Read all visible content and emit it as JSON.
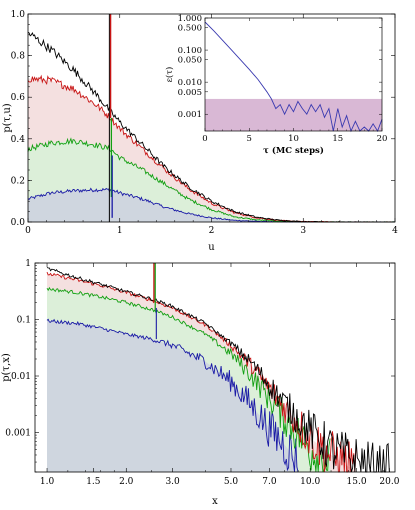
{
  "chart_data": [
    {
      "type": "area",
      "xlabel": "u",
      "ylabel": "p(τ,u)",
      "xlim": [
        0,
        4
      ],
      "ylim": [
        0,
        1.0
      ],
      "xticks": [
        "0",
        "1",
        "2",
        "3",
        "4"
      ],
      "yticks": [
        "0.0",
        "0.2",
        "0.4",
        "0.6",
        "0.8",
        "1.0"
      ],
      "grid": false,
      "spike": {
        "x": 0.9,
        "note": "vertical initial delta spike"
      },
      "series": [
        {
          "color": "#1a1aa6",
          "fill": "#cfd6df",
          "x": [
            0,
            0.25,
            0.5,
            0.75,
            0.9,
            1.0,
            1.25,
            1.5,
            1.75,
            2.0,
            2.25,
            2.5,
            2.75,
            3.0,
            3.5,
            4.0
          ],
          "values": [
            0.11,
            0.14,
            0.15,
            0.155,
            0.155,
            0.14,
            0.11,
            0.07,
            0.04,
            0.02,
            0.008,
            0.003,
            0.001,
            0,
            0,
            0
          ]
        },
        {
          "color": "#12a012",
          "fill": "#dcefd9",
          "x": [
            0,
            0.25,
            0.5,
            0.75,
            0.9,
            1.0,
            1.25,
            1.5,
            1.75,
            2.0,
            2.25,
            2.5,
            2.75,
            3.0,
            3.5,
            4.0
          ],
          "values": [
            0.35,
            0.38,
            0.39,
            0.37,
            0.35,
            0.31,
            0.25,
            0.18,
            0.11,
            0.06,
            0.025,
            0.01,
            0.004,
            0.001,
            0,
            0
          ]
        },
        {
          "color": "#c81414",
          "fill": "#f4e0e0",
          "x": [
            0,
            0.25,
            0.5,
            0.75,
            0.9,
            1.0,
            1.25,
            1.5,
            1.75,
            2.0,
            2.25,
            2.5,
            2.75,
            3.0,
            3.5,
            4.0
          ],
          "values": [
            0.69,
            0.68,
            0.64,
            0.56,
            0.5,
            0.45,
            0.35,
            0.25,
            0.16,
            0.09,
            0.045,
            0.02,
            0.007,
            0.002,
            0,
            0
          ]
        },
        {
          "color": "#000000",
          "x": [
            0,
            0.25,
            0.5,
            0.75,
            0.9,
            1.0,
            1.25,
            1.5,
            1.75,
            2.0,
            2.25,
            2.5,
            2.75,
            3.0,
            3.5,
            4.0
          ],
          "values": [
            0.91,
            0.83,
            0.73,
            0.61,
            0.53,
            0.48,
            0.37,
            0.26,
            0.17,
            0.1,
            0.05,
            0.022,
            0.008,
            0.002,
            0,
            0
          ]
        }
      ],
      "inset": {
        "type": "line",
        "xlabel": "τ (MC steps)",
        "ylabel": "ε(τ)",
        "xlim": [
          0,
          20
        ],
        "ylim": [
          0.0003,
          1.0
        ],
        "yscale": "log",
        "xticks": [
          "0",
          "5",
          "10",
          "15",
          "20"
        ],
        "yticks": [
          "1.000",
          "0.500",
          "0.100",
          "0.050",
          "0.010",
          "0.005",
          "0.001"
        ],
        "band": [
          0.0003,
          0.003
        ],
        "band_color": "#d9b8d5",
        "series": [
          {
            "color": "#3a3ab0",
            "x": [
              0,
              1,
              2,
              3,
              4,
              5,
              6,
              7,
              7.5,
              8,
              8.5,
              9,
              9.5,
              10,
              10.5,
              11,
              11.5,
              12,
              12.5,
              13,
              13.5,
              14,
              14.5,
              15,
              15.5,
              16,
              16.5,
              17,
              17.5,
              18,
              18.5,
              19,
              19.5,
              20
            ],
            "values": [
              0.75,
              0.4,
              0.2,
              0.1,
              0.05,
              0.025,
              0.012,
              0.005,
              0.003,
              0.0015,
              0.002,
              0.001,
              0.002,
              0.0012,
              0.0025,
              0.0015,
              0.001,
              0.002,
              0.0012,
              0.002,
              0.0008,
              0.0015,
              0.0003,
              0.0015,
              0.0004,
              0.0009,
              0.0003,
              0.0006,
              0.0003,
              0.0004,
              0.0003,
              0.0005,
              0.0003,
              0.0007
            ]
          }
        ]
      }
    },
    {
      "type": "area",
      "xlabel": "x",
      "ylabel": "p(τ,x)",
      "xscale": "log",
      "yscale": "log",
      "xlim": [
        0.9,
        21
      ],
      "ylim": [
        0.0002,
        1
      ],
      "xticks": [
        "1.0",
        "1.5",
        "2.0",
        "3.0",
        "5.0",
        "7.0",
        "10.0",
        "15.0",
        "20.0"
      ],
      "yticks": [
        "1",
        "0.1",
        "0.01",
        "0.001"
      ],
      "grid": false,
      "spike": {
        "x": 2.57,
        "note": "vertical initial delta spike"
      },
      "series": [
        {
          "color": "#1a1aa6",
          "fill": "#cfd6df",
          "x": [
            1.0,
            1.3,
            1.6,
            2.0,
            2.5,
            3.0,
            4.0,
            5.0,
            6.0,
            7.0,
            8.0,
            9.0
          ],
          "values": [
            0.095,
            0.085,
            0.07,
            0.055,
            0.045,
            0.035,
            0.018,
            0.008,
            0.003,
            0.0012,
            0.0006,
            0.0003
          ]
        },
        {
          "color": "#12a012",
          "fill": "#dcefd9",
          "x": [
            1.0,
            1.3,
            1.6,
            2.0,
            2.5,
            3.0,
            4.0,
            5.0,
            6.0,
            7.0,
            8.0,
            10.0,
            12.0
          ],
          "values": [
            0.35,
            0.3,
            0.25,
            0.2,
            0.15,
            0.11,
            0.055,
            0.025,
            0.01,
            0.004,
            0.0018,
            0.0005,
            0.0003
          ]
        },
        {
          "color": "#c81414",
          "fill": "#f4e0e0",
          "x": [
            1.0,
            1.3,
            1.6,
            2.0,
            2.5,
            3.0,
            4.0,
            5.0,
            6.0,
            7.0,
            8.0,
            10.0,
            12.0,
            15.0
          ],
          "values": [
            0.65,
            0.5,
            0.4,
            0.3,
            0.22,
            0.16,
            0.08,
            0.035,
            0.015,
            0.006,
            0.0028,
            0.0008,
            0.0004,
            0.0002
          ]
        },
        {
          "color": "#000000",
          "x": [
            1.0,
            1.3,
            1.6,
            2.0,
            2.5,
            3.0,
            4.0,
            5.0,
            6.0,
            7.0,
            8.0,
            10.0,
            12.0,
            15.0,
            18.0,
            20.0
          ],
          "values": [
            0.8,
            0.55,
            0.42,
            0.31,
            0.23,
            0.17,
            0.085,
            0.038,
            0.017,
            0.007,
            0.0032,
            0.0011,
            0.0005,
            0.0003,
            0.0002,
            0.0002
          ]
        }
      ]
    }
  ]
}
